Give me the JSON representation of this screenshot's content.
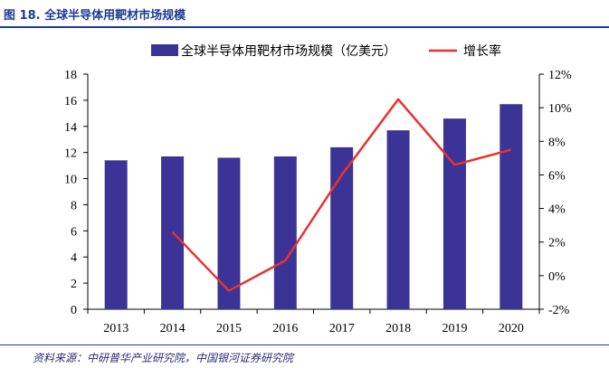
{
  "header": {
    "title": "图 18. 全球半导体用靶材市场规模"
  },
  "footer": {
    "source": "资料来源：中研普华产业研究院，中国银河证券研究院"
  },
  "chart_data": {
    "type": "bar",
    "title": "图 18. 全球半导体用靶材市场规模",
    "categories": [
      "2013",
      "2014",
      "2015",
      "2016",
      "2017",
      "2018",
      "2019",
      "2020"
    ],
    "series": [
      {
        "name": "全球半导体用靶材市场规模（亿美元）",
        "type": "bar",
        "axis": "left",
        "values": [
          11.4,
          11.7,
          11.6,
          11.7,
          12.4,
          13.7,
          14.6,
          15.7
        ]
      },
      {
        "name": "增长率",
        "type": "line",
        "axis": "right",
        "values": [
          null,
          2.6,
          -0.9,
          0.9,
          6.0,
          10.5,
          6.6,
          7.5
        ]
      }
    ],
    "ylim": [
      0,
      18
    ],
    "yticks": [
      "0",
      "2",
      "4",
      "6",
      "8",
      "10",
      "12",
      "14",
      "16",
      "18"
    ],
    "y2lim": [
      -2,
      12
    ],
    "y2ticks": [
      "-2%",
      "0%",
      "2%",
      "4%",
      "6%",
      "8%",
      "10%",
      "12%"
    ],
    "colors": {
      "bar": "#3b3496",
      "line": "#e8312f",
      "frame": "#000000"
    },
    "legend": [
      "全球半导体用靶材市场规模（亿美元）",
      "增长率"
    ]
  }
}
